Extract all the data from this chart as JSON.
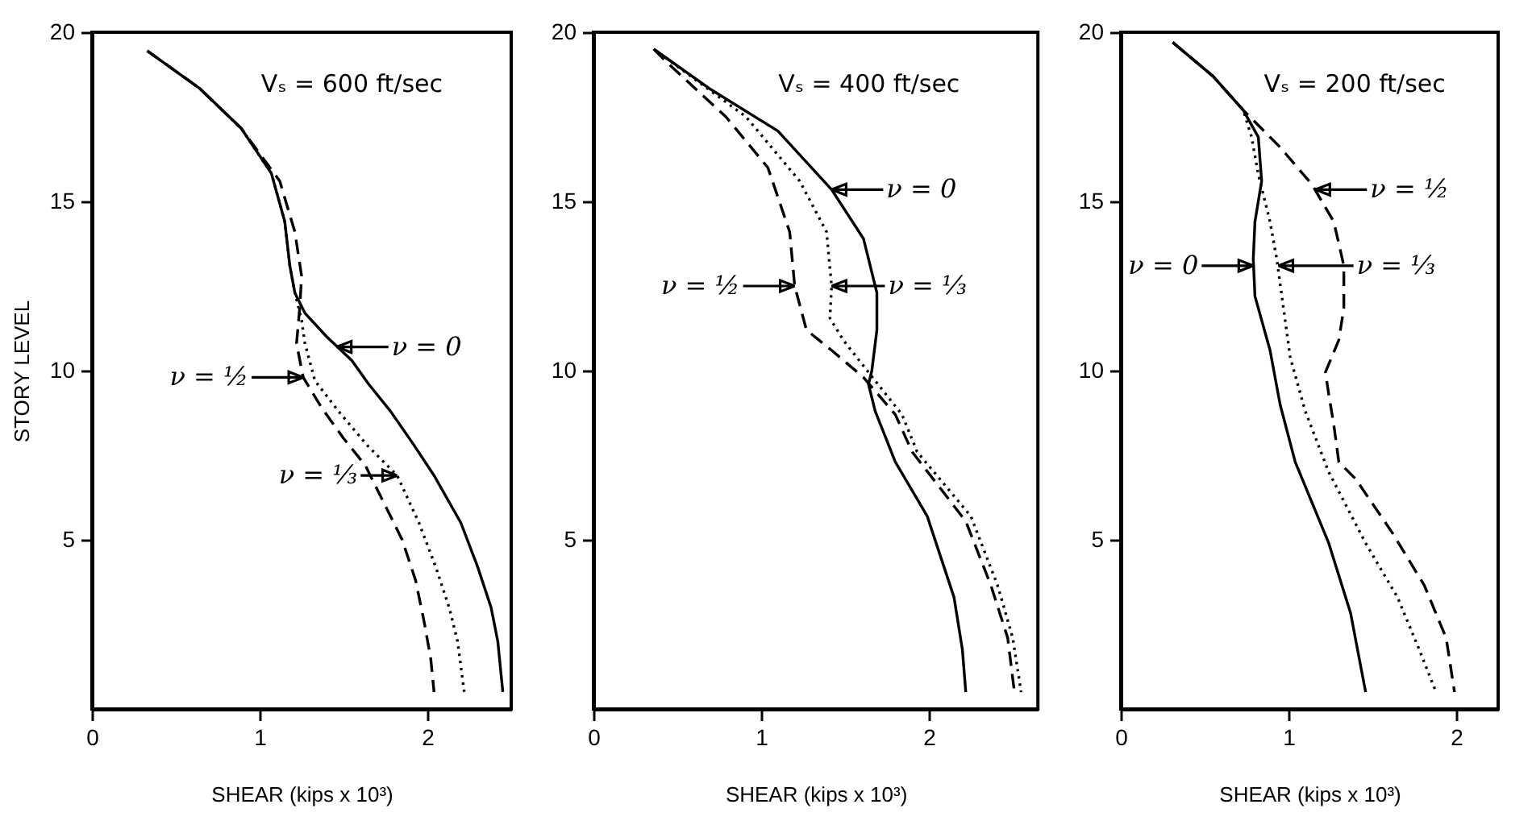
{
  "chart_data": [
    {
      "type": "line",
      "title": "Vₛ = 600 ft/sec",
      "xlabel": "SHEAR (kips x 10³)",
      "ylabel": "STORY LEVEL",
      "xlim": [
        0,
        2.5
      ],
      "ylim": [
        0,
        20
      ],
      "xticks": [
        0,
        1,
        2
      ],
      "yticks": [
        5,
        10,
        15,
        20
      ],
      "series": [
        {
          "color": "#000000",
          "line_style": "solid",
          "x": [
            0.33,
            0.64,
            0.89,
            1.07,
            1.15,
            1.18,
            1.21,
            1.27,
            1.4,
            1.55,
            1.65,
            1.78,
            1.92,
            2.04,
            2.2,
            2.3,
            2.38,
            2.42,
            2.45
          ],
          "values": [
            19.45,
            18.35,
            17.16,
            15.83,
            14.4,
            13.1,
            12.3,
            11.7,
            11.0,
            10.3,
            9.6,
            8.8,
            7.8,
            6.9,
            5.5,
            4.2,
            3.0,
            2.0,
            0.5
          ]
        },
        {
          "color": "#000000",
          "line_style": "dashed",
          "x": [
            0.33,
            0.64,
            0.89,
            1.12,
            1.21,
            1.25,
            1.24,
            1.22,
            1.26,
            1.37,
            1.5,
            1.63,
            1.75,
            1.85,
            1.93,
            1.98,
            2.02,
            2.04
          ],
          "values": [
            19.45,
            18.35,
            17.16,
            15.6,
            14.1,
            12.8,
            11.9,
            10.8,
            9.8,
            8.9,
            8.0,
            7.2,
            6.0,
            5.0,
            3.8,
            2.6,
            1.5,
            0.5
          ]
        },
        {
          "color": "#000000",
          "line_style": "dotted",
          "x": [
            0.33,
            0.64,
            0.89,
            1.07,
            1.15,
            1.18,
            1.21,
            1.25,
            1.27,
            1.33,
            1.47,
            1.64,
            1.82,
            1.95,
            2.05,
            2.13,
            2.18,
            2.22
          ],
          "values": [
            19.45,
            18.35,
            17.16,
            15.83,
            14.4,
            13.1,
            12.3,
            11.5,
            10.8,
            9.7,
            8.8,
            7.8,
            6.9,
            5.5,
            4.2,
            3.0,
            2.0,
            0.5
          ]
        }
      ],
      "annotations": [
        {
          "text": "ν = 0",
          "x": 1.46,
          "y": 10.7
        },
        {
          "text": "ν = ½",
          "x": 1.26,
          "y": 9.8
        },
        {
          "text": "ν = ⅓",
          "x": 1.82,
          "y": 6.9
        }
      ]
    },
    {
      "type": "line",
      "title": "Vₛ = 400 ft/sec",
      "xlabel": "SHEAR (kips x 10³)",
      "xlim": [
        0,
        2.65
      ],
      "ylim": [
        0,
        20
      ],
      "xticks": [
        0,
        1,
        2
      ],
      "yticks": [
        5,
        10,
        15,
        20
      ],
      "series": [
        {
          "color": "#000000",
          "line_style": "solid",
          "x": [
            0.36,
            0.69,
            1.1,
            1.42,
            1.61,
            1.69,
            1.69,
            1.66,
            1.64,
            1.68,
            1.8,
            1.99,
            2.15,
            2.2,
            2.22
          ],
          "values": [
            19.5,
            18.34,
            17.08,
            15.35,
            13.9,
            12.3,
            11.2,
            10.0,
            9.6,
            8.8,
            7.3,
            5.7,
            3.3,
            1.75,
            0.5
          ]
        },
        {
          "color": "#000000",
          "line_style": "dashed",
          "x": [
            0.36,
            0.44,
            0.79,
            1.04,
            1.17,
            1.2,
            1.27,
            1.42,
            1.61,
            1.8,
            1.9,
            2.22,
            2.37,
            2.47,
            2.51
          ],
          "values": [
            19.5,
            19.1,
            17.5,
            16.0,
            14.1,
            12.5,
            11.2,
            10.6,
            9.8,
            8.7,
            7.6,
            5.55,
            3.65,
            2.1,
            0.5
          ]
        },
        {
          "color": "#000000",
          "line_style": "dotted",
          "x": [
            0.36,
            0.47,
            0.91,
            1.23,
            1.39,
            1.42,
            1.41,
            1.49,
            1.64,
            1.84,
            1.93,
            2.25,
            2.41,
            2.5,
            2.55
          ],
          "values": [
            19.5,
            19.1,
            17.5,
            15.6,
            14.1,
            12.5,
            11.55,
            10.9,
            9.95,
            8.7,
            7.6,
            5.7,
            3.65,
            2.1,
            0.5
          ]
        }
      ],
      "annotations": [
        {
          "text": "ν = 0",
          "x": 1.42,
          "y": 15.35
        },
        {
          "text": "ν = ½",
          "x": 1.2,
          "y": 12.5
        },
        {
          "text": "ν = ⅓",
          "x": 1.42,
          "y": 12.5
        }
      ]
    },
    {
      "type": "line",
      "title": "Vₛ = 200 ft/sec",
      "xlabel": "SHEAR (kips x 10³)",
      "xlim": [
        0,
        2.25
      ],
      "ylim": [
        0,
        20
      ],
      "xticks": [
        0,
        1,
        2
      ],
      "yticks": [
        5,
        10,
        15,
        20
      ],
      "series": [
        {
          "color": "#000000",
          "line_style": "solid",
          "x": [
            0.31,
            0.55,
            0.73,
            0.82,
            0.84,
            0.8,
            0.79,
            0.8,
            0.89,
            0.95,
            1.04,
            1.24,
            1.37,
            1.46
          ],
          "values": [
            19.7,
            18.7,
            17.7,
            16.9,
            15.6,
            14.4,
            13.3,
            12.2,
            10.6,
            9.0,
            7.3,
            4.9,
            2.84,
            0.5
          ]
        },
        {
          "color": "#000000",
          "line_style": "dashed",
          "x": [
            0.31,
            0.55,
            0.73,
            0.95,
            1.14,
            1.27,
            1.33,
            1.33,
            1.3,
            1.22,
            1.24,
            1.27,
            1.3,
            1.4,
            1.62,
            1.81,
            1.94,
            1.99
          ],
          "values": [
            19.7,
            18.7,
            17.7,
            16.6,
            15.5,
            14.4,
            13.1,
            11.85,
            10.9,
            9.95,
            9.3,
            8.4,
            7.3,
            6.8,
            5.2,
            3.65,
            2.1,
            0.5
          ]
        },
        {
          "color": "#000000",
          "line_style": "dotted",
          "x": [
            0.31,
            0.55,
            0.73,
            0.78,
            0.82,
            0.89,
            0.93,
            0.97,
            1.01,
            1.1,
            1.24,
            1.46,
            1.65,
            1.78,
            1.88
          ],
          "values": [
            19.7,
            18.7,
            17.7,
            16.9,
            15.8,
            14.4,
            13.3,
            11.85,
            10.4,
            8.8,
            7.0,
            4.9,
            3.3,
            1.75,
            0.5
          ]
        }
      ],
      "annotations": [
        {
          "text": "ν = 0",
          "x": 0.79,
          "y": 13.1
        },
        {
          "text": "ν = ½",
          "x": 1.16,
          "y": 15.35
        },
        {
          "text": "ν = ⅓",
          "x": 0.94,
          "y": 13.1
        }
      ]
    }
  ]
}
